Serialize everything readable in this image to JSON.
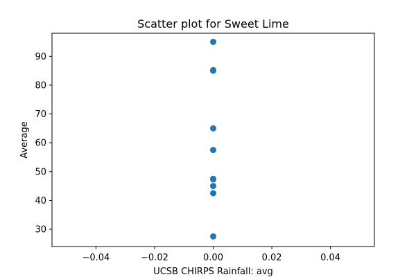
{
  "chart_data": {
    "type": "scatter",
    "title": "Scatter plot for Sweet Lime",
    "xlabel": "UCSB CHIRPS Rainfall: avg",
    "ylabel": "Average",
    "xlim": [
      -0.055,
      0.055
    ],
    "ylim": [
      24,
      98
    ],
    "xticks": [
      -0.04,
      -0.02,
      0.0,
      0.02,
      0.04
    ],
    "xtick_labels": [
      "−0.04",
      "−0.02",
      "0.00",
      "0.02",
      "0.04"
    ],
    "yticks": [
      30,
      40,
      50,
      60,
      70,
      80,
      90
    ],
    "ytick_labels": [
      "30",
      "40",
      "50",
      "60",
      "70",
      "80",
      "90"
    ],
    "grid": false,
    "legend": "none",
    "marker_color": "#1f77b4",
    "points": [
      {
        "x": 0.0,
        "y": 95
      },
      {
        "x": 0.0,
        "y": 85
      },
      {
        "x": 0.0,
        "y": 85.2
      },
      {
        "x": 0.0,
        "y": 65
      },
      {
        "x": 0.0,
        "y": 57.5
      },
      {
        "x": 0.0,
        "y": 47.5
      },
      {
        "x": 0.0,
        "y": 47.3
      },
      {
        "x": 0.0,
        "y": 45
      },
      {
        "x": 0.0,
        "y": 42.5
      },
      {
        "x": 0.0,
        "y": 27.5
      }
    ]
  }
}
